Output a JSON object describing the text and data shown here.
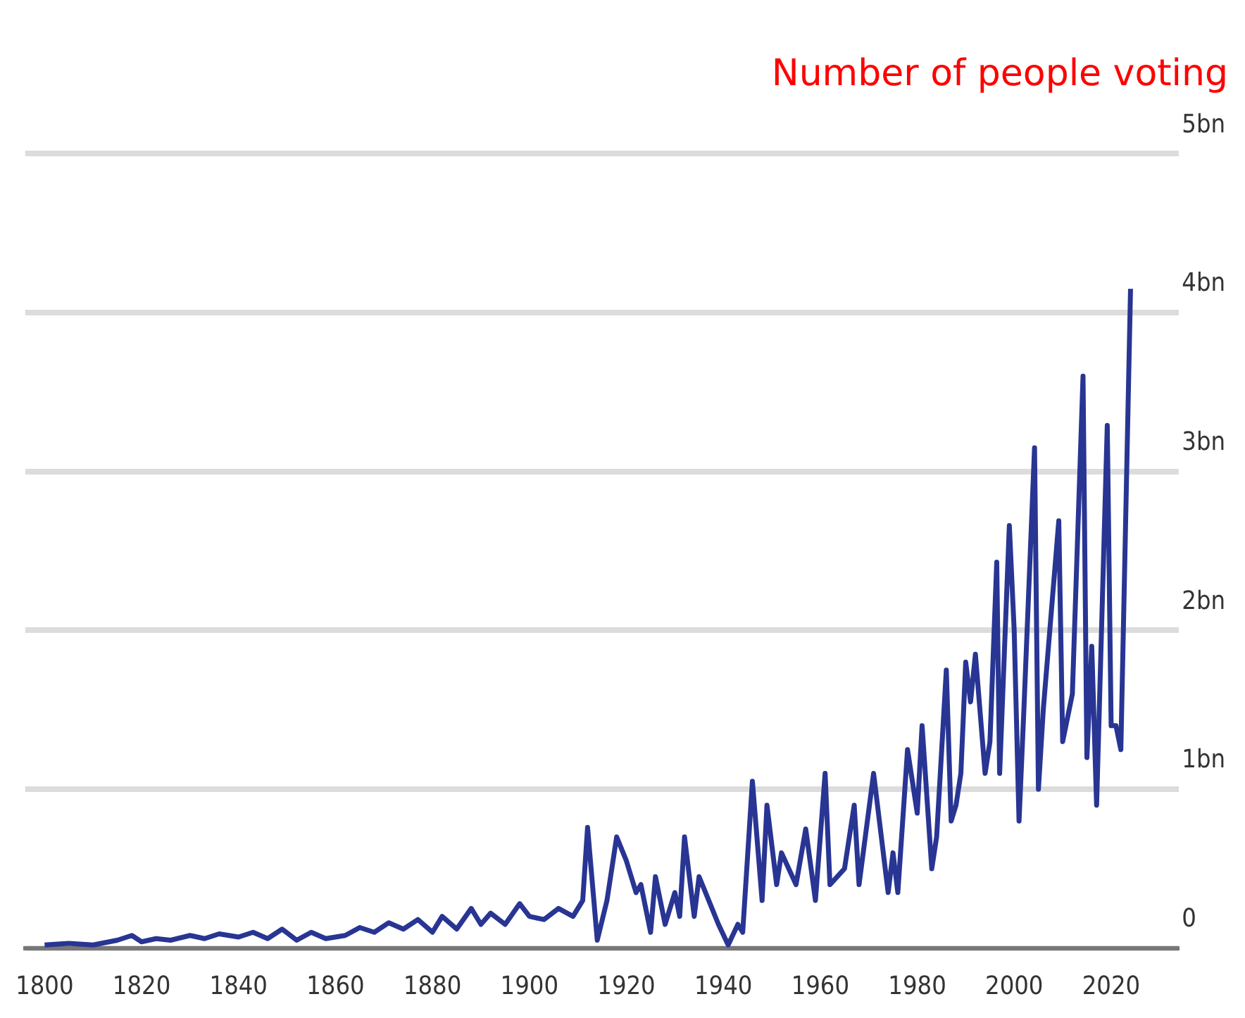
{
  "chart_data": {
    "type": "line",
    "title": "Number of people voting",
    "x": [
      1800,
      1805,
      1810,
      1815,
      1818,
      1820,
      1823,
      1826,
      1830,
      1833,
      1836,
      1840,
      1843,
      1846,
      1849,
      1852,
      1855,
      1858,
      1862,
      1865,
      1868,
      1871,
      1874,
      1877,
      1880,
      1882,
      1885,
      1888,
      1890,
      1892,
      1895,
      1898,
      1900,
      1903,
      1906,
      1909,
      1911,
      1912,
      1914,
      1916,
      1918,
      1920,
      1922,
      1923,
      1925,
      1926,
      1928,
      1930,
      1931,
      1932,
      1934,
      1935,
      1937,
      1939,
      1941,
      1943,
      1944,
      1946,
      1948,
      1949,
      1951,
      1952,
      1955,
      1957,
      1959,
      1961,
      1962,
      1965,
      1967,
      1968,
      1971,
      1974,
      1975,
      1976,
      1978,
      1980,
      1981,
      1983,
      1984,
      1986,
      1987,
      1988,
      1989,
      1990,
      1991,
      1992,
      1994,
      1995,
      1996.4,
      1997,
      1999,
      2000,
      2001,
      2002,
      2004.2,
      2005,
      2006,
      2009.2,
      2010,
      2012,
      2014.2,
      2015,
      2016,
      2017,
      2019.2,
      2020,
      2021,
      2022,
      2024
    ],
    "series": [
      {
        "color": "#283593",
        "values": [
          0.02,
          0.03,
          0.02,
          0.05,
          0.08,
          0.04,
          0.06,
          0.05,
          0.08,
          0.06,
          0.09,
          0.07,
          0.1,
          0.06,
          0.12,
          0.05,
          0.1,
          0.06,
          0.08,
          0.13,
          0.1,
          0.16,
          0.12,
          0.18,
          0.1,
          0.2,
          0.12,
          0.25,
          0.15,
          0.22,
          0.15,
          0.28,
          0.2,
          0.18,
          0.25,
          0.2,
          0.3,
          0.76,
          0.05,
          0.3,
          0.7,
          0.55,
          0.35,
          0.4,
          0.1,
          0.45,
          0.15,
          0.35,
          0.2,
          0.7,
          0.2,
          0.45,
          0.3,
          0.15,
          0.02,
          0.15,
          0.1,
          1.05,
          0.3,
          0.9,
          0.4,
          0.6,
          0.4,
          0.75,
          0.3,
          1.1,
          0.4,
          0.5,
          0.9,
          0.4,
          1.1,
          0.35,
          0.6,
          0.35,
          1.25,
          0.85,
          1.4,
          0.5,
          0.7,
          1.75,
          0.8,
          0.9,
          1.1,
          1.8,
          1.55,
          1.85,
          1.1,
          1.3,
          2.43,
          1.1,
          2.66,
          2.0,
          0.8,
          1.5,
          3.15,
          1.0,
          1.5,
          2.69,
          1.3,
          1.6,
          3.6,
          1.2,
          1.9,
          0.9,
          3.29,
          1.4,
          1.4,
          1.25,
          4.15
        ]
      }
    ],
    "xlim": [
      1796,
      2034
    ],
    "xticks": [
      1800,
      1820,
      1840,
      1860,
      1880,
      1900,
      1920,
      1940,
      1960,
      1980,
      2000,
      2020
    ],
    "ylim": [
      0,
      5
    ],
    "yticks": [
      0,
      {
        "value": 1,
        "label": "1bn"
      },
      {
        "value": 2,
        "label": "2bn"
      },
      {
        "value": 3,
        "label": "3bn"
      },
      {
        "value": 4,
        "label": "4bn"
      },
      {
        "value": 5,
        "label": "5bn"
      }
    ],
    "grid": "y",
    "legend": false,
    "marker": "none",
    "line_style": "solid"
  }
}
